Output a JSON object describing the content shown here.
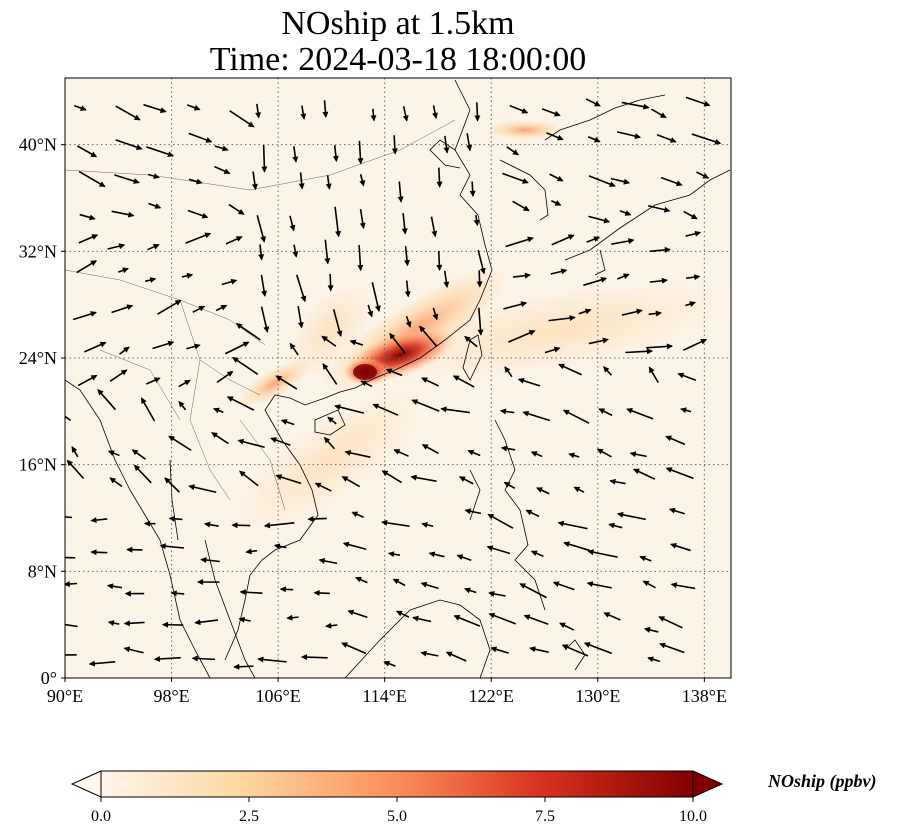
{
  "title_line1": "NOship at 1.5km",
  "title_line2": "Time: 2024-03-18 18:00:00",
  "map": {
    "extent": {
      "lon_min": 90,
      "lon_max": 140,
      "lat_min": 0,
      "lat_max": 45
    },
    "lon_ticks": [
      {
        "value": 90,
        "label": "90°E"
      },
      {
        "value": 98,
        "label": "98°E"
      },
      {
        "value": 106,
        "label": "106°E"
      },
      {
        "value": 114,
        "label": "114°E"
      },
      {
        "value": 122,
        "label": "122°E"
      },
      {
        "value": 130,
        "label": "130°E"
      },
      {
        "value": 138,
        "label": "138°E"
      }
    ],
    "lat_ticks": [
      {
        "value": 0,
        "label": "0°"
      },
      {
        "value": 8,
        "label": "8°N"
      },
      {
        "value": 16,
        "label": "16°N"
      },
      {
        "value": 24,
        "label": "24°N"
      },
      {
        "value": 32,
        "label": "32°N"
      },
      {
        "value": 40,
        "label": "40°N"
      }
    ],
    "gridlines": "dotted",
    "background_color": "#fdf4e8",
    "high_concentration_region": "South China coast / Pearl River Delta"
  },
  "colorbar": {
    "label": "NOship (ppbv)",
    "cmap": "OrRd",
    "min": 0.0,
    "max": 10.0,
    "extend": "both",
    "ticks": [
      "0.0",
      "2.5",
      "5.0",
      "7.5",
      "10.0"
    ],
    "colors": [
      "#fff7ec",
      "#fdd49e",
      "#fc8d59",
      "#d7301f",
      "#7f0000"
    ]
  }
}
